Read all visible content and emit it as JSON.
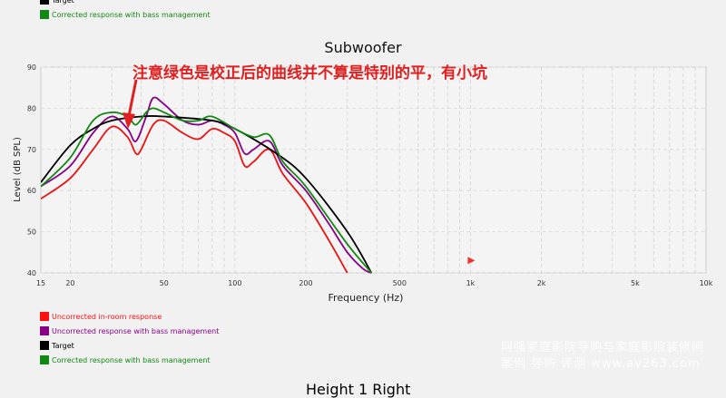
{
  "top_legend": [
    {
      "label": "Target",
      "color": "#000000"
    },
    {
      "label": "Corrected response with bass management",
      "color": "#118811"
    }
  ],
  "bottom_legend": [
    {
      "label": "Uncorrected in-room response",
      "color": "#ff1111"
    },
    {
      "label": "Uncorrected response with bass management",
      "color": "#880088"
    },
    {
      "label": "Target",
      "color": "#000000"
    },
    {
      "label": "Corrected response with bass management",
      "color": "#118811"
    }
  ],
  "annotation": "注意绿色是校正后的曲线并不算是特别的平，有小坑",
  "next_title": "Height 1 Right",
  "watermark": [
    "阿强家庭影院导购与家庭影院装修网",
    "案例 导购 评测 www.av263.com"
  ],
  "chart_data": {
    "type": "line",
    "title": "Subwoofer",
    "xlabel": "Frequency (Hz)",
    "ylabel": "Level (dB SPL)",
    "xscale": "log",
    "xlim": [
      15,
      10000
    ],
    "ylim": [
      40,
      90
    ],
    "xticks": [
      15,
      20,
      50,
      100,
      200,
      500,
      1000,
      2000,
      5000,
      10000
    ],
    "xtick_labels": [
      "15",
      "20",
      "50",
      "100",
      "200",
      "500",
      "1k",
      "2k",
      "5k",
      "10k"
    ],
    "yticks": [
      40,
      50,
      60,
      70,
      80,
      90
    ],
    "grid": true,
    "series": [
      {
        "name": "Uncorrected in-room response",
        "color": "#ee1111",
        "x": [
          15,
          20,
          25,
          30,
          35,
          38,
          40,
          45,
          50,
          60,
          70,
          80,
          90,
          100,
          110,
          120,
          140,
          160,
          200,
          250,
          300
        ],
        "y": [
          58,
          63,
          70,
          75.5,
          73,
          69,
          70,
          76,
          77,
          74,
          72.5,
          75,
          74,
          72,
          66,
          67,
          70,
          64,
          57,
          48,
          40
        ]
      },
      {
        "name": "Uncorrected response with bass management",
        "color": "#880088",
        "x": [
          15,
          20,
          25,
          30,
          35,
          38,
          42,
          45,
          50,
          60,
          70,
          80,
          90,
          100,
          110,
          120,
          140,
          160,
          200,
          250,
          300,
          350,
          380
        ],
        "y": [
          61,
          66,
          74,
          78,
          75,
          72,
          78,
          82.5,
          81,
          77,
          76,
          77,
          76,
          74,
          69,
          70,
          72,
          66,
          60,
          52,
          45,
          41,
          40
        ]
      },
      {
        "name": "Target",
        "color": "#000000",
        "x": [
          15,
          20,
          25,
          30,
          40,
          50,
          80,
          100,
          150,
          200,
          300,
          380
        ],
        "y": [
          62,
          71,
          75,
          77,
          78,
          78,
          77,
          75,
          69,
          63,
          50,
          40
        ]
      },
      {
        "name": "Corrected response with bass management",
        "color": "#118811",
        "x": [
          15,
          20,
          25,
          30,
          35,
          38,
          42,
          45,
          50,
          60,
          70,
          80,
          100,
          120,
          140,
          160,
          200,
          300,
          380
        ],
        "y": [
          61,
          68,
          77,
          79,
          78,
          76,
          79,
          80,
          79,
          77,
          77,
          78,
          75,
          73,
          73.5,
          67,
          61,
          47,
          40
        ]
      }
    ],
    "markers": [
      {
        "x": 1000,
        "y": 43,
        "shape": "triangle",
        "color": "#ee3333"
      }
    ]
  }
}
